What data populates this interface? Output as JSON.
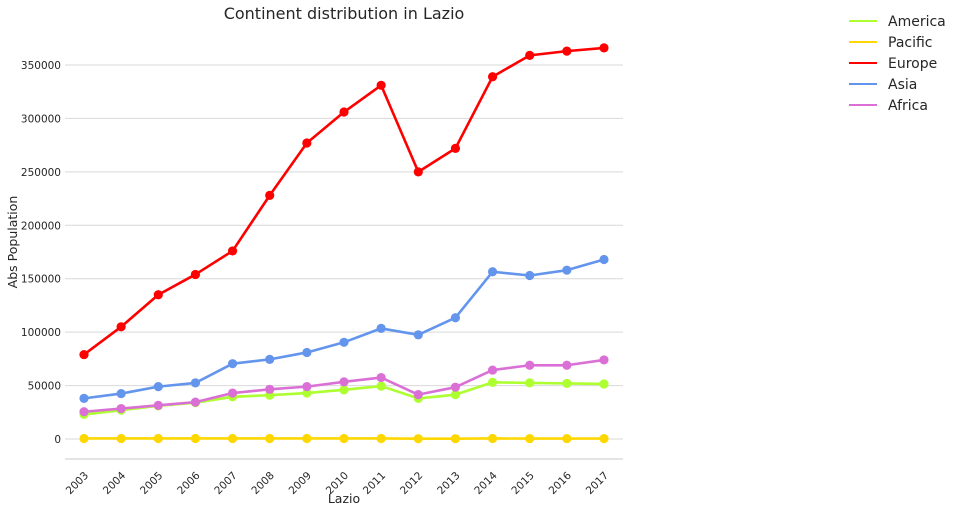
{
  "chart_data": {
    "type": "line",
    "title": "Continent distribution in Lazio",
    "xlabel": "Lazio",
    "ylabel": "Abs Population",
    "categories": [
      "2003",
      "2004",
      "2005",
      "2006",
      "2007",
      "2008",
      "2009",
      "2010",
      "2011",
      "2012",
      "2013",
      "2014",
      "2015",
      "2016",
      "2017"
    ],
    "yticks": [
      0,
      50000,
      100000,
      150000,
      200000,
      250000,
      300000,
      350000
    ],
    "ylim": [
      -19000,
      385000
    ],
    "grid": "horizontal",
    "legend_position": "top-right outside",
    "series": [
      {
        "name": "America",
        "color": "#adff2f",
        "values": [
          23000,
          27000,
          31000,
          34000,
          39500,
          41000,
          43000,
          46000,
          49500,
          38000,
          41500,
          53000,
          52500,
          52000,
          51500
        ]
      },
      {
        "name": "Pacific",
        "color": "#ffd700",
        "values": [
          500,
          500,
          500,
          500,
          500,
          500,
          500,
          500,
          500,
          300,
          300,
          500,
          400,
          400,
          400
        ]
      },
      {
        "name": "Europe",
        "color": "#ff0000",
        "values": [
          79000,
          105000,
          135000,
          154000,
          176000,
          228000,
          277000,
          306000,
          331000,
          250000,
          272000,
          339000,
          359000,
          363000,
          366000
        ]
      },
      {
        "name": "Asia",
        "color": "#6495ed",
        "values": [
          38000,
          42500,
          49000,
          52500,
          70500,
          74500,
          81000,
          90500,
          103500,
          97500,
          113500,
          156500,
          153000,
          158000,
          168000
        ]
      },
      {
        "name": "Africa",
        "color": "#da70d6",
        "values": [
          25500,
          28500,
          31500,
          34500,
          43000,
          46500,
          49000,
          53500,
          57500,
          41500,
          48500,
          64500,
          69000,
          69000,
          74000
        ]
      }
    ]
  }
}
